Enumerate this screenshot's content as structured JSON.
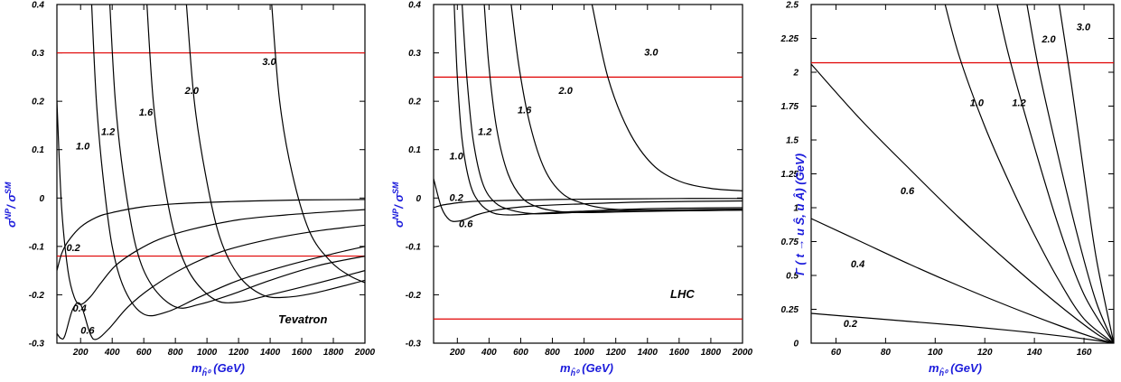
{
  "chart_data": [
    {
      "type": "line",
      "xlabel": "m_ĥ⁰ (GeV)",
      "ylabel": "σ^NP / σ^SM",
      "xlim": [
        50,
        2000
      ],
      "ylim": [
        -0.3,
        0.4
      ],
      "xticks": [
        200,
        400,
        600,
        800,
        1000,
        1200,
        1400,
        1600,
        1800,
        2000
      ],
      "yticks": [
        -0.3,
        -0.2,
        -0.1,
        0,
        0.1,
        0.2,
        0.3,
        0.4
      ],
      "annotation": "Tevatron",
      "reference_lines": [
        0.3,
        -0.12
      ],
      "series": [
        {
          "name": "0.2",
          "label_at": [
            110,
            -0.11
          ],
          "x": [
            50,
            80,
            120,
            200,
            300,
            400,
            600,
            800,
            1000,
            1300,
            1600,
            2000
          ],
          "y": [
            -0.15,
            -0.115,
            -0.09,
            -0.06,
            -0.04,
            -0.03,
            -0.018,
            -0.012,
            -0.009,
            -0.006,
            -0.004,
            -0.003
          ]
        },
        {
          "name": "0.4",
          "label_at": [
            150,
            -0.235
          ],
          "x": [
            50,
            80,
            120,
            160,
            200,
            260,
            330,
            420,
            550,
            700,
            900,
            1200,
            1500,
            1800,
            2000
          ],
          "y": [
            0.2,
            -0.02,
            -0.15,
            -0.205,
            -0.22,
            -0.205,
            -0.175,
            -0.14,
            -0.11,
            -0.085,
            -0.065,
            -0.045,
            -0.035,
            -0.028,
            -0.024
          ]
        },
        {
          "name": "0.6",
          "label_at": [
            200,
            -0.28
          ],
          "x": [
            50,
            75,
            100,
            150,
            200,
            260,
            300,
            380,
            500,
            650,
            850,
            1100,
            1400,
            1700,
            2000
          ],
          "y": [
            -0.28,
            -0.29,
            -0.285,
            -0.23,
            -0.22,
            -0.28,
            -0.292,
            -0.27,
            -0.225,
            -0.185,
            -0.145,
            -0.11,
            -0.085,
            -0.068,
            -0.056
          ]
        },
        {
          "name": "1.0",
          "label_at": [
            170,
            0.1
          ],
          "x": [
            270,
            300,
            340,
            400,
            480,
            600,
            750,
            950,
            1200,
            1500,
            1800,
            2000
          ],
          "y": [
            0.4,
            0.2,
            0.05,
            -0.1,
            -0.19,
            -0.24,
            -0.235,
            -0.205,
            -0.17,
            -0.14,
            -0.115,
            -0.1
          ]
        },
        {
          "name": "1.2",
          "label_at": [
            330,
            0.13
          ],
          "x": [
            385,
            420,
            470,
            550,
            650,
            800,
            950,
            1150,
            1400,
            1700,
            2000
          ],
          "y": [
            0.4,
            0.2,
            0.05,
            -0.1,
            -0.18,
            -0.225,
            -0.22,
            -0.2,
            -0.17,
            -0.14,
            -0.12
          ]
        },
        {
          "name": "1.6",
          "label_at": [
            570,
            0.17
          ],
          "x": [
            620,
            660,
            720,
            800,
            900,
            1050,
            1200,
            1400,
            1650,
            2000
          ],
          "y": [
            0.4,
            0.2,
            0.05,
            -0.08,
            -0.16,
            -0.21,
            -0.215,
            -0.2,
            -0.18,
            -0.15
          ]
        },
        {
          "name": "2.0",
          "label_at": [
            860,
            0.215
          ],
          "x": [
            870,
            920,
            990,
            1080,
            1200,
            1350,
            1500,
            1700,
            2000
          ],
          "y": [
            0.4,
            0.2,
            0.05,
            -0.08,
            -0.16,
            -0.2,
            -0.205,
            -0.195,
            -0.17
          ]
        },
        {
          "name": "3.0",
          "label_at": [
            1350,
            0.275
          ],
          "x": [
            1410,
            1460,
            1540,
            1650,
            1780,
            1900,
            2000
          ],
          "y": [
            0.4,
            0.2,
            0.05,
            -0.07,
            -0.13,
            -0.16,
            -0.175
          ]
        }
      ]
    },
    {
      "type": "line",
      "xlabel": "m_ĥ⁰ (GeV)",
      "ylabel": "σ^NP / σ^SM",
      "xlim": [
        50,
        2000
      ],
      "ylim": [
        -0.3,
        0.4
      ],
      "xticks": [
        200,
        400,
        600,
        800,
        1000,
        1200,
        1400,
        1600,
        1800,
        2000
      ],
      "yticks": [
        -0.3,
        -0.2,
        -0.1,
        0,
        0.1,
        0.2,
        0.3,
        0.4
      ],
      "annotation": "LHC",
      "reference_lines": [
        0.25,
        -0.25
      ],
      "series": [
        {
          "name": "0.2",
          "label_at": [
            150,
            -0.006
          ],
          "x": [
            50,
            100,
            200,
            300,
            500,
            800,
            1200,
            1600,
            2000
          ],
          "y": [
            -0.02,
            -0.015,
            -0.01,
            -0.007,
            -0.005,
            -0.003,
            -0.002,
            -0.001,
            -0.001
          ]
        },
        {
          "name": "0.6",
          "label_at": [
            210,
            -0.06
          ],
          "x": [
            50,
            100,
            150,
            200,
            260,
            320,
            400,
            500,
            700,
            1000,
            1400,
            2000
          ],
          "y": [
            0.04,
            -0.02,
            -0.045,
            -0.048,
            -0.043,
            -0.035,
            -0.028,
            -0.022,
            -0.016,
            -0.012,
            -0.008,
            -0.006
          ]
        },
        {
          "name": "1.0",
          "label_at": [
            150,
            0.08
          ],
          "x": [
            180,
            200,
            230,
            280,
            340,
            420,
            520,
            650,
            800,
            1000,
            1300,
            1600,
            2000
          ],
          "y": [
            0.4,
            0.25,
            0.12,
            0.03,
            -0.01,
            -0.03,
            -0.035,
            -0.033,
            -0.03,
            -0.027,
            -0.023,
            -0.021,
            -0.02
          ]
        },
        {
          "name": "1.2",
          "label_at": [
            330,
            0.13
          ],
          "x": [
            230,
            260,
            300,
            360,
            440,
            540,
            660,
            800,
            1000,
            1300,
            1700,
            2000
          ],
          "y": [
            0.4,
            0.25,
            0.12,
            0.03,
            -0.01,
            -0.025,
            -0.032,
            -0.032,
            -0.029,
            -0.026,
            -0.024,
            -0.023
          ]
        },
        {
          "name": "1.6",
          "label_at": [
            580,
            0.175
          ],
          "x": [
            370,
            400,
            450,
            520,
            610,
            720,
            850,
            1000,
            1200,
            1500,
            2000
          ],
          "y": [
            0.4,
            0.27,
            0.14,
            0.05,
            0.0,
            -0.02,
            -0.028,
            -0.03,
            -0.029,
            -0.027,
            -0.025
          ]
        },
        {
          "name": "2.0",
          "label_at": [
            840,
            0.215
          ],
          "x": [
            540,
            590,
            660,
            750,
            860,
            1000,
            1150,
            1350,
            1600,
            2000
          ],
          "y": [
            0.4,
            0.27,
            0.15,
            0.06,
            0.01,
            -0.012,
            -0.022,
            -0.025,
            -0.026,
            -0.025
          ]
        },
        {
          "name": "3.0",
          "label_at": [
            1380,
            0.295
          ],
          "x": [
            1050,
            1150,
            1280,
            1430,
            1600,
            1800,
            2000
          ],
          "y": [
            0.4,
            0.25,
            0.14,
            0.07,
            0.035,
            0.02,
            0.015
          ]
        }
      ]
    },
    {
      "type": "line",
      "xlabel": "m_ĥ⁰ (GeV)",
      "ylabel": "Γ ( t → u Ŝ, u Â) (GeV)",
      "xlim": [
        50,
        172
      ],
      "ylim": [
        0,
        2.5
      ],
      "xticks": [
        60,
        80,
        100,
        120,
        140,
        160
      ],
      "yticks": [
        0,
        0.25,
        0.5,
        0.75,
        1,
        1.25,
        1.5,
        1.75,
        2,
        2.25,
        2.5
      ],
      "reference_lines": [
        2.07
      ],
      "series": [
        {
          "name": "0.2",
          "label_at": [
            63,
            0.12
          ],
          "x": [
            50,
            70,
            90,
            110,
            130,
            150,
            165,
            172
          ],
          "y": [
            0.22,
            0.19,
            0.16,
            0.13,
            0.095,
            0.055,
            0.02,
            0.0
          ]
        },
        {
          "name": "0.4",
          "label_at": [
            66,
            0.56
          ],
          "x": [
            50,
            70,
            90,
            110,
            130,
            150,
            165,
            172
          ],
          "y": [
            0.92,
            0.75,
            0.58,
            0.42,
            0.27,
            0.13,
            0.035,
            0.0
          ]
        },
        {
          "name": "0.6",
          "label_at": [
            86,
            1.1
          ],
          "x": [
            50,
            70,
            90,
            110,
            130,
            150,
            165,
            172
          ],
          "y": [
            2.06,
            1.65,
            1.28,
            0.92,
            0.59,
            0.28,
            0.07,
            0.0
          ]
        },
        {
          "name": "1.0",
          "label_at": [
            114,
            1.75
          ],
          "x": [
            104,
            110,
            120,
            130,
            140,
            150,
            160,
            172
          ],
          "y": [
            2.5,
            2.1,
            1.6,
            1.18,
            0.8,
            0.46,
            0.18,
            0.0
          ]
        },
        {
          "name": "1.2",
          "label_at": [
            131,
            1.75
          ],
          "x": [
            125,
            130,
            140,
            150,
            160,
            172
          ],
          "y": [
            2.5,
            2.1,
            1.45,
            0.85,
            0.36,
            0.0
          ]
        },
        {
          "name": "2.0",
          "label_at": [
            143,
            2.22
          ],
          "x": [
            137,
            142,
            150,
            158,
            165,
            172
          ],
          "y": [
            2.5,
            2.0,
            1.35,
            0.75,
            0.3,
            0.0
          ]
        },
        {
          "name": "3.0",
          "label_at": [
            157,
            2.31
          ],
          "x": [
            150,
            155,
            160,
            165,
            172
          ],
          "y": [
            2.5,
            1.9,
            1.25,
            0.62,
            0.0
          ]
        }
      ]
    }
  ]
}
